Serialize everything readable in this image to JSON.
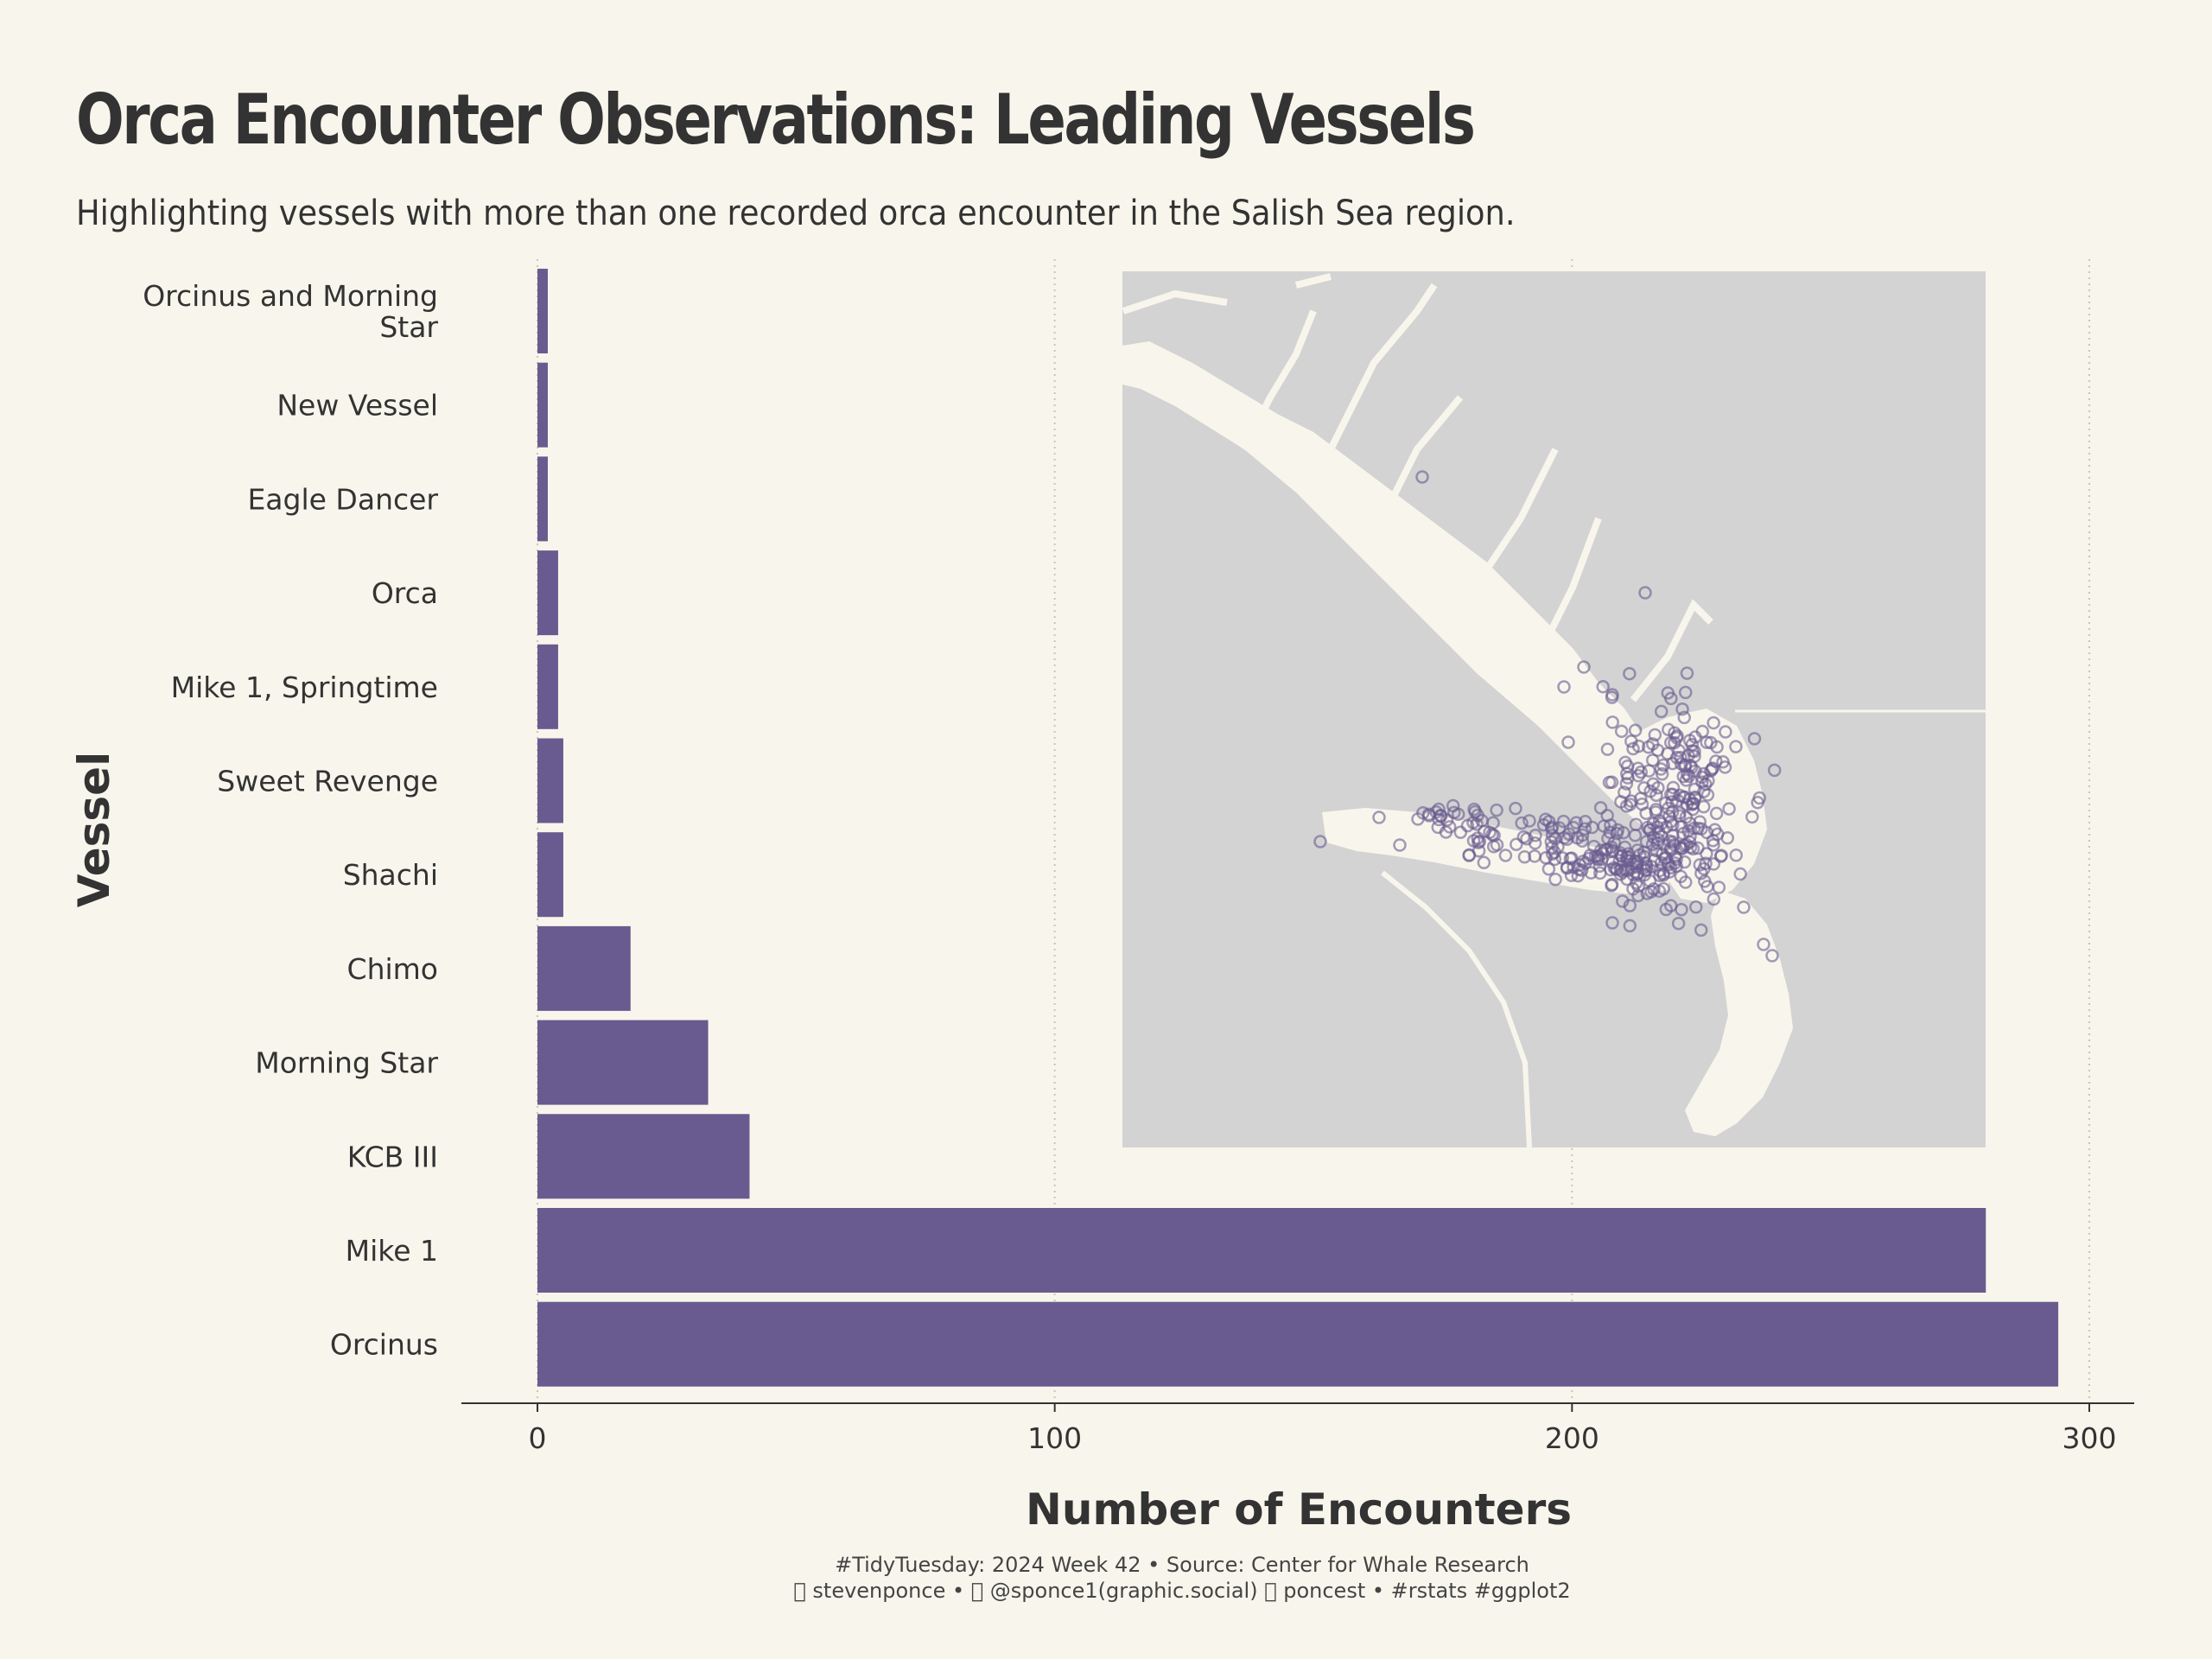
{
  "title": "Orca Encounter Observations: Leading Vessels",
  "subtitle": "Highlighting vessels with more than one recorded orca encounter in the Salish Sea region.",
  "caption": {
    "line1": "#TidyTuesday: 2024 Week 42 • Source: Center for Whale Research",
    "line2": "  stevenponce •   @sponce1(graphic.social)   poncest • #rstats #ggplot2"
  },
  "colors": {
    "background": "#f8f6ec",
    "bar": "#695b8f",
    "map_land": "#d3d3d3",
    "map_water": "#f8f6ec",
    "points": "#695b8f",
    "text": "#333333"
  },
  "chart_data": {
    "type": "bar",
    "orientation": "horizontal",
    "xlabel": "Number of Encounters",
    "ylabel": "Vessel",
    "xlim": [
      0,
      300
    ],
    "xticks": [
      0,
      100,
      200,
      300
    ],
    "grid": "vertical dotted",
    "categories": [
      "Orcinus and Morning\nStar",
      "New Vessel",
      "Eagle Dancer",
      "Orca",
      "Mike 1, Springtime",
      "Sweet Revenge",
      "Shachi",
      "Chimo",
      "Morning Star",
      "KCB III",
      "Mike 1",
      "Orcinus"
    ],
    "values": [
      2,
      2,
      2,
      4,
      4,
      5,
      5,
      18,
      33,
      41,
      280,
      294
    ],
    "inset": {
      "type": "map-scatter",
      "description_region": "Salish Sea",
      "point_style": "hollow circles"
    }
  }
}
